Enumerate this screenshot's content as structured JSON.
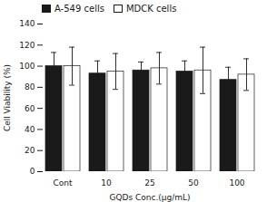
{
  "chart_data": {
    "type": "bar",
    "xlabel": "GQDs Conc.(μg/mL)",
    "ylabel": "Cell Viability (%)",
    "categories": [
      "Cont",
      "10",
      "25",
      "50",
      "100"
    ],
    "series": [
      {
        "name": "A-549 cells",
        "color": "#1a1a1a",
        "values": [
          100,
          93,
          96,
          95,
          87
        ],
        "errors": [
          13,
          12,
          8,
          10,
          12
        ]
      },
      {
        "name": "MDCK cells",
        "color": "#ffffff",
        "values": [
          100,
          95,
          98,
          96,
          92
        ],
        "errors": [
          18,
          17,
          15,
          22,
          15
        ]
      }
    ],
    "ylim": [
      0,
      140
    ],
    "yticks": [
      0,
      20,
      40,
      60,
      80,
      100,
      120,
      140
    ],
    "legend": "upper left"
  }
}
